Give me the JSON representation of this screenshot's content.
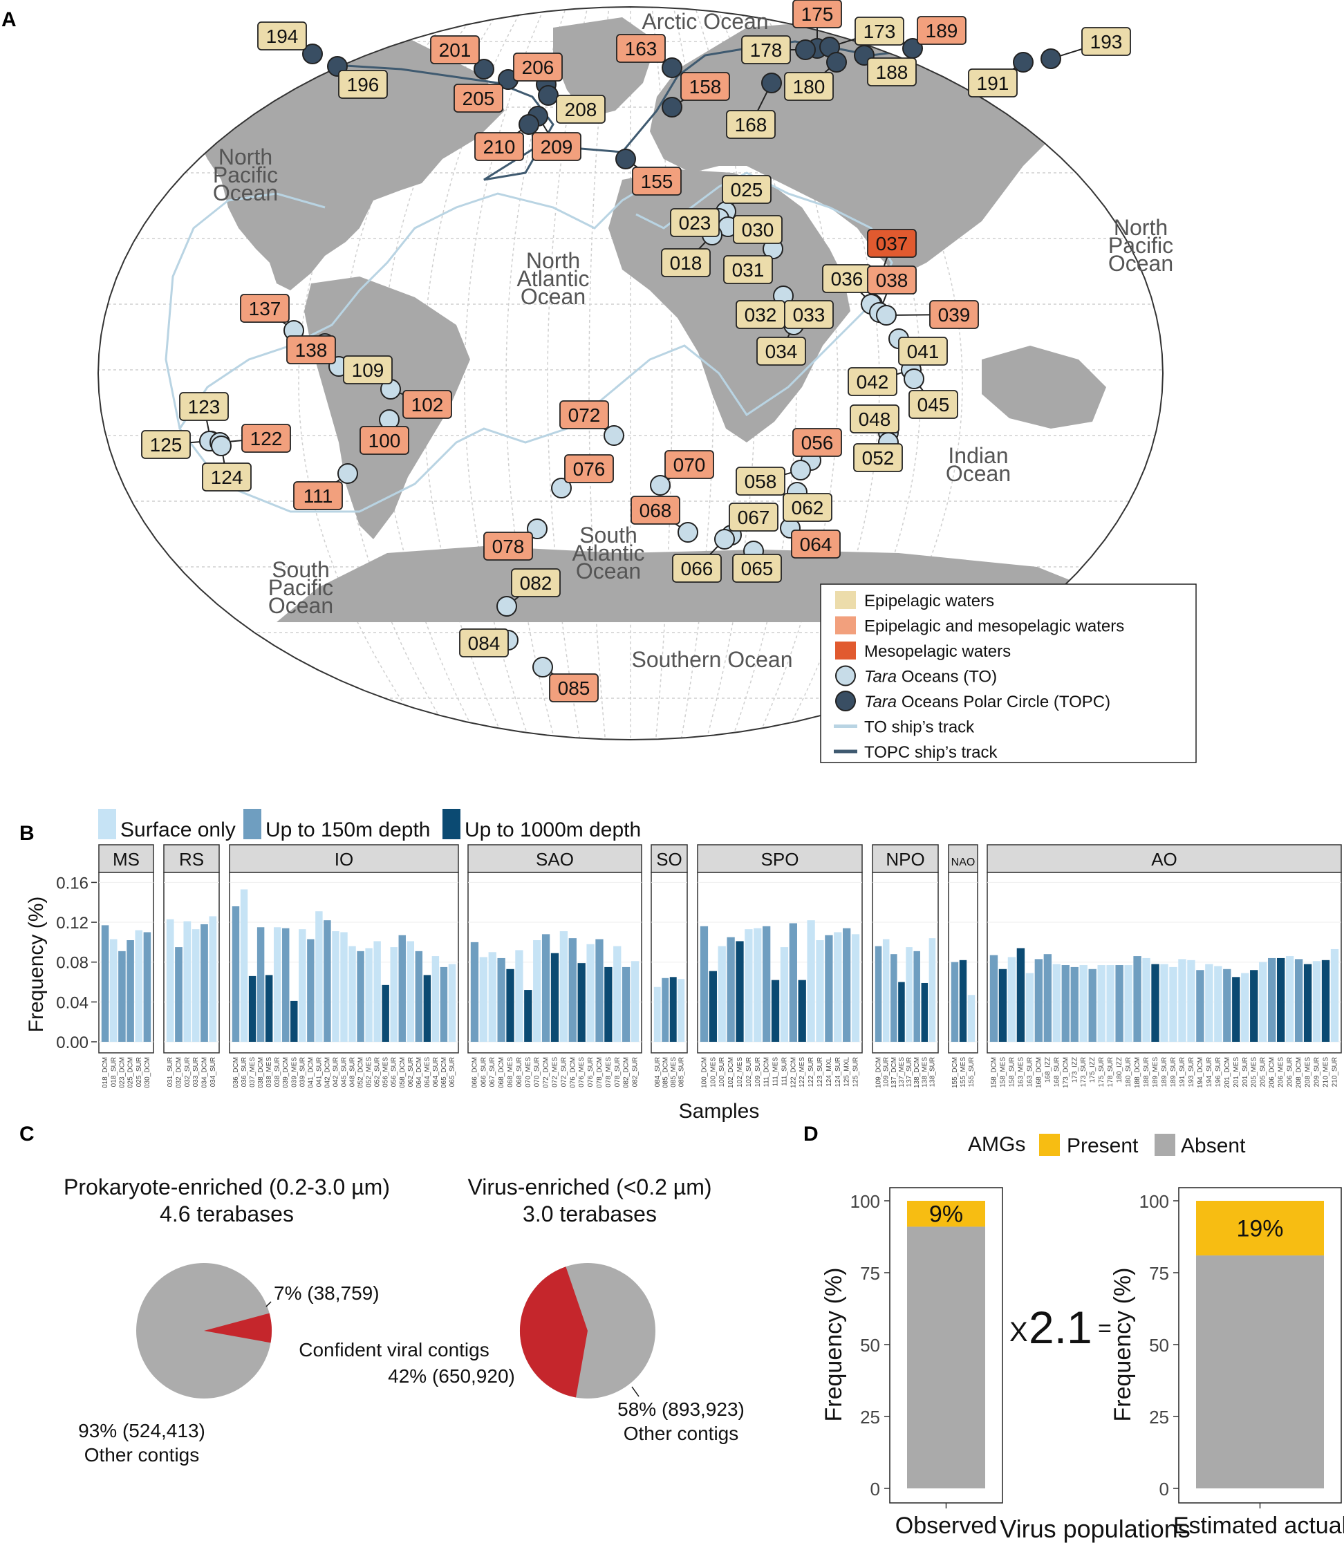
{
  "colors": {
    "land": "#a8a8a8",
    "ocean": "#ffffff",
    "graticule": "#cfcfcf",
    "to_track": "#b9d4e3",
    "topc_track": "#3f5a70",
    "to_station": "#c7dce8",
    "topc_station": "#394e63",
    "epi": "#ecdcab",
    "epimeso": "#f2a07d",
    "meso": "#e15a2f",
    "surface": "#c6e3f5",
    "upto150": "#6f9ec0",
    "upto1000": "#0b4a72",
    "strip": "#d9d9d9",
    "pie_grey": "#acacac",
    "pie_red": "#c5262c",
    "amg_present": "#f7bd12",
    "amg_absent": "#aaaaaa"
  },
  "panel_labels": {
    "a": "A",
    "b": "B",
    "c": "C",
    "d": "D"
  },
  "map": {
    "ocean_labels": [
      {
        "id": "arctic",
        "lines": [
          "Arctic Ocean"
        ]
      },
      {
        "id": "npo_w",
        "lines": [
          "North",
          "Pacific",
          "Ocean"
        ]
      },
      {
        "id": "nao",
        "lines": [
          "North",
          "Atlantic",
          "Ocean"
        ]
      },
      {
        "id": "npo_e",
        "lines": [
          "North",
          "Pacific",
          "Ocean"
        ]
      },
      {
        "id": "spo",
        "lines": [
          "South",
          "Pacific",
          "Ocean"
        ]
      },
      {
        "id": "sao",
        "lines": [
          "South",
          "Atlantic",
          "Ocean"
        ]
      },
      {
        "id": "io",
        "lines": [
          "Indian",
          "Ocean"
        ]
      },
      {
        "id": "so",
        "lines": [
          "Southern Ocean"
        ]
      }
    ],
    "stations": [
      {
        "id": "194",
        "cat": "epi",
        "type": "topc"
      },
      {
        "id": "196",
        "cat": "epi",
        "type": "topc"
      },
      {
        "id": "201",
        "cat": "epimeso",
        "type": "topc"
      },
      {
        "id": "205",
        "cat": "epimeso",
        "type": "topc"
      },
      {
        "id": "206",
        "cat": "epimeso",
        "type": "topc"
      },
      {
        "id": "208",
        "cat": "epi",
        "type": "topc"
      },
      {
        "id": "209",
        "cat": "epimeso",
        "type": "topc"
      },
      {
        "id": "210",
        "cat": "epimeso",
        "type": "topc"
      },
      {
        "id": "163",
        "cat": "epimeso",
        "type": "topc"
      },
      {
        "id": "158",
        "cat": "epimeso",
        "type": "topc"
      },
      {
        "id": "155",
        "cat": "epimeso",
        "type": "topc"
      },
      {
        "id": "175",
        "cat": "epimeso",
        "type": "topc"
      },
      {
        "id": "178",
        "cat": "epi",
        "type": "topc"
      },
      {
        "id": "173",
        "cat": "epi",
        "type": "topc"
      },
      {
        "id": "189",
        "cat": "epimeso",
        "type": "topc"
      },
      {
        "id": "180",
        "cat": "epi",
        "type": "topc"
      },
      {
        "id": "188",
        "cat": "epi",
        "type": "topc"
      },
      {
        "id": "168",
        "cat": "epi",
        "type": "topc"
      },
      {
        "id": "191",
        "cat": "epi",
        "type": "topc"
      },
      {
        "id": "193",
        "cat": "epi",
        "type": "topc"
      },
      {
        "id": "025",
        "cat": "epi",
        "type": "to"
      },
      {
        "id": "023",
        "cat": "epi",
        "type": "to"
      },
      {
        "id": "030",
        "cat": "epi",
        "type": "to"
      },
      {
        "id": "018",
        "cat": "epi",
        "type": "to"
      },
      {
        "id": "031",
        "cat": "epi",
        "type": "to"
      },
      {
        "id": "032",
        "cat": "epi",
        "type": "to"
      },
      {
        "id": "033",
        "cat": "epi",
        "type": "to"
      },
      {
        "id": "034",
        "cat": "epi",
        "type": "to"
      },
      {
        "id": "036",
        "cat": "epi",
        "type": "to"
      },
      {
        "id": "037",
        "cat": "meso",
        "type": "to"
      },
      {
        "id": "038",
        "cat": "epimeso",
        "type": "to"
      },
      {
        "id": "039",
        "cat": "epimeso",
        "type": "to"
      },
      {
        "id": "041",
        "cat": "epi",
        "type": "to"
      },
      {
        "id": "042",
        "cat": "epi",
        "type": "to"
      },
      {
        "id": "045",
        "cat": "epi",
        "type": "to"
      },
      {
        "id": "048",
        "cat": "epi",
        "type": "to"
      },
      {
        "id": "052",
        "cat": "epi",
        "type": "to"
      },
      {
        "id": "056",
        "cat": "epimeso",
        "type": "to"
      },
      {
        "id": "058",
        "cat": "epi",
        "type": "to"
      },
      {
        "id": "062",
        "cat": "epi",
        "type": "to"
      },
      {
        "id": "067",
        "cat": "epi",
        "type": "to"
      },
      {
        "id": "064",
        "cat": "epimeso",
        "type": "to"
      },
      {
        "id": "066",
        "cat": "epi",
        "type": "to"
      },
      {
        "id": "065",
        "cat": "epi",
        "type": "to"
      },
      {
        "id": "068",
        "cat": "epimeso",
        "type": "to"
      },
      {
        "id": "070",
        "cat": "epimeso",
        "type": "to"
      },
      {
        "id": "072",
        "cat": "epimeso",
        "type": "to"
      },
      {
        "id": "076",
        "cat": "epimeso",
        "type": "to"
      },
      {
        "id": "078",
        "cat": "epimeso",
        "type": "to"
      },
      {
        "id": "082",
        "cat": "epi",
        "type": "to"
      },
      {
        "id": "084",
        "cat": "epi",
        "type": "to"
      },
      {
        "id": "085",
        "cat": "epimeso",
        "type": "to"
      },
      {
        "id": "137",
        "cat": "epimeso",
        "type": "to"
      },
      {
        "id": "138",
        "cat": "epimeso",
        "type": "to"
      },
      {
        "id": "109",
        "cat": "epi",
        "type": "to"
      },
      {
        "id": "102",
        "cat": "epimeso",
        "type": "to"
      },
      {
        "id": "100",
        "cat": "epimeso",
        "type": "to"
      },
      {
        "id": "111",
        "cat": "epimeso",
        "type": "to"
      },
      {
        "id": "123",
        "cat": "epi",
        "type": "to"
      },
      {
        "id": "125",
        "cat": "epi",
        "type": "to"
      },
      {
        "id": "122",
        "cat": "epimeso",
        "type": "to"
      },
      {
        "id": "124",
        "cat": "epi",
        "type": "to"
      }
    ],
    "legend": [
      {
        "key": "epi",
        "kind": "swatch",
        "text": "Epipelagic waters"
      },
      {
        "key": "epimeso",
        "kind": "swatch",
        "text": "Epipelagic and mesopelagic waters"
      },
      {
        "key": "meso",
        "kind": "swatch",
        "text": "Mesopelagic waters"
      },
      {
        "key": "to_station",
        "kind": "circle",
        "italic": "Tara",
        "text": " Oceans (TO)"
      },
      {
        "key": "topc_station",
        "kind": "circle",
        "italic": "Tara",
        "text": " Oceans Polar Circle (TOPC)"
      },
      {
        "key": "to_track",
        "kind": "line",
        "text": "TO ship’s track"
      },
      {
        "key": "topc_track",
        "kind": "line",
        "text": "TOPC ship’s track"
      }
    ]
  },
  "chart_data": [
    {
      "type": "bar",
      "panel": "B",
      "xlabel": "Samples",
      "ylabel": "Frequency (%)",
      "ylim": [
        0,
        0.17
      ],
      "yticks": [
        "0.00",
        "0.04",
        "0.08",
        "0.12",
        "0.16"
      ],
      "legend": [
        {
          "key": "s",
          "label": "Surface only"
        },
        {
          "key": "d",
          "label": "Up to 150m depth"
        },
        {
          "key": "m",
          "label": "Up to 1000m depth"
        }
      ],
      "facets": [
        {
          "name": "MS",
          "samples": [
            "018_DCM",
            "018_SUR",
            "023_DCM",
            "025_DCM",
            "025_SUR",
            "030_DCM"
          ],
          "values": [
            0.117,
            0.103,
            0.091,
            0.102,
            0.112,
            0.11
          ],
          "cat": [
            "d",
            "s",
            "d",
            "d",
            "s",
            "d"
          ]
        },
        {
          "name": "RS",
          "samples": [
            "031_SUR",
            "032_DCM",
            "032_SUR",
            "033_SUR",
            "034_DCM",
            "034_SUR"
          ],
          "values": [
            0.123,
            0.095,
            0.121,
            0.113,
            0.118,
            0.126
          ],
          "cat": [
            "s",
            "d",
            "s",
            "s",
            "d",
            "s"
          ]
        },
        {
          "name": "IO",
          "samples": [
            "036_DCM",
            "036_SUR",
            "037_MES",
            "038_DCM",
            "038_MES",
            "038_SUR",
            "039_DCM",
            "039_MES",
            "039_SUR",
            "041_DCM",
            "041_SUR",
            "042_DCM",
            "042_SUR",
            "045_SUR",
            "048_SUR",
            "052_DCM",
            "052_MES",
            "052_SUR",
            "056_MES",
            "056_SUR",
            "058_DCM",
            "062_SUR",
            "064_DCM",
            "064_MES",
            "064_SUR",
            "065_DCM",
            "065_SUR"
          ],
          "values": [
            0.136,
            0.153,
            0.066,
            0.115,
            0.067,
            0.115,
            0.114,
            0.041,
            0.113,
            0.103,
            0.131,
            0.122,
            0.111,
            0.11,
            0.096,
            0.091,
            0.094,
            0.101,
            0.057,
            0.095,
            0.107,
            0.101,
            0.091,
            0.067,
            0.086,
            0.075,
            0.078
          ],
          "cat": [
            "d",
            "s",
            "m",
            "d",
            "m",
            "s",
            "d",
            "m",
            "s",
            "d",
            "s",
            "d",
            "s",
            "s",
            "s",
            "d",
            "s",
            "s",
            "m",
            "s",
            "d",
            "s",
            "d",
            "m",
            "s",
            "d",
            "s"
          ]
        },
        {
          "name": "SAO",
          "samples": [
            "066_DCM",
            "066_SUR",
            "067_SUR",
            "068_DCM",
            "068_MES",
            "068_SUR",
            "070_MES",
            "070_SUR",
            "072_DCM",
            "072_MES",
            "072_SUR",
            "076_DCM",
            "076_MES",
            "076_SUR",
            "078_DCM",
            "078_MES",
            "078_SUR",
            "082_DCM",
            "082_SUR"
          ],
          "values": [
            0.1,
            0.085,
            0.09,
            0.084,
            0.073,
            0.092,
            0.052,
            0.102,
            0.108,
            0.089,
            0.111,
            0.104,
            0.079,
            0.098,
            0.103,
            0.075,
            0.096,
            0.075,
            0.081
          ],
          "cat": [
            "d",
            "s",
            "s",
            "d",
            "m",
            "s",
            "m",
            "s",
            "d",
            "m",
            "s",
            "d",
            "m",
            "s",
            "d",
            "m",
            "s",
            "d",
            "s"
          ]
        },
        {
          "name": "SO",
          "samples": [
            "084_SUR",
            "085_DCM",
            "085_MES",
            "085_SUR"
          ],
          "values": [
            0.055,
            0.064,
            0.065,
            0.063
          ],
          "cat": [
            "s",
            "d",
            "m",
            "s"
          ]
        },
        {
          "name": "SPO",
          "samples": [
            "100_DCM",
            "100_MES",
            "100_SUR",
            "102_DCM",
            "102_MES",
            "102_SUR",
            "109_SUR",
            "111_DCM",
            "111_MES",
            "111_SUR",
            "122_DCM",
            "122_MES",
            "122_SUR",
            "123_SUR",
            "124_MXL",
            "124_SUR",
            "125_MXL",
            "125_SUR"
          ],
          "values": [
            0.116,
            0.071,
            0.096,
            0.105,
            0.101,
            0.113,
            0.114,
            0.116,
            0.062,
            0.095,
            0.119,
            0.062,
            0.122,
            0.102,
            0.107,
            0.11,
            0.114,
            0.108
          ],
          "cat": [
            "d",
            "m",
            "s",
            "d",
            "m",
            "s",
            "s",
            "d",
            "m",
            "s",
            "d",
            "m",
            "s",
            "s",
            "d",
            "s",
            "d",
            "s"
          ]
        },
        {
          "name": "NPO",
          "samples": [
            "109_DCM",
            "109_SUR",
            "137_DCM",
            "137_MES",
            "137_SUR",
            "138_DCM",
            "138_MES",
            "138_SUR"
          ],
          "values": [
            0.096,
            0.103,
            0.088,
            0.06,
            0.095,
            0.091,
            0.059,
            0.104
          ],
          "cat": [
            "d",
            "s",
            "d",
            "m",
            "s",
            "d",
            "m",
            "s"
          ]
        },
        {
          "name": "NAO",
          "samples": [
            "155_DCM",
            "155_MES",
            "155_SUR"
          ],
          "values": [
            0.08,
            0.082,
            0.047
          ],
          "cat": [
            "d",
            "m",
            "s"
          ]
        },
        {
          "name": "AO",
          "samples": [
            "158_DCM",
            "158_MES",
            "158_SUR",
            "163_MES",
            "163_SUR",
            "168_DCM",
            "168_IZZ",
            "168_SUR",
            "173_DCM",
            "173_IZZ",
            "173_SUR",
            "175_IZZ",
            "175_SUR",
            "178_SUR",
            "180_IZZ",
            "180_SUR",
            "188_DCM",
            "188_SUR",
            "189_MES",
            "189_SUR",
            "189_SUR",
            "191_SUR",
            "193_SUR",
            "194_DCM",
            "194_SUR",
            "196_SUR",
            "201_DCM",
            "201_MES",
            "201_SUR",
            "205_MES",
            "205_SUR",
            "206_DCM",
            "206_MES",
            "206_SUR",
            "208_DCM",
            "208_MES",
            "209_SUR",
            "210_MES",
            "210_SUR"
          ],
          "values": [
            0.087,
            0.073,
            0.085,
            0.094,
            0.069,
            0.083,
            0.088,
            0.078,
            0.077,
            0.075,
            0.077,
            0.073,
            0.077,
            0.077,
            0.077,
            0.077,
            0.086,
            0.084,
            0.078,
            0.078,
            0.075,
            0.083,
            0.082,
            0.072,
            0.078,
            0.076,
            0.073,
            0.065,
            0.069,
            0.072,
            0.08,
            0.084,
            0.084,
            0.086,
            0.083,
            0.078,
            0.081,
            0.082,
            0.093
          ],
          "cat": [
            "d",
            "m",
            "s",
            "m",
            "s",
            "d",
            "d",
            "s",
            "d",
            "d",
            "s",
            "d",
            "s",
            "s",
            "d",
            "s",
            "d",
            "s",
            "m",
            "s",
            "s",
            "s",
            "s",
            "d",
            "s",
            "s",
            "d",
            "m",
            "s",
            "m",
            "s",
            "d",
            "m",
            "s",
            "d",
            "m",
            "s",
            "m",
            "s"
          ]
        }
      ]
    },
    {
      "type": "pie",
      "panel": "C",
      "title": "Prokaryote-enriched (0.2-3.0 µm)",
      "subtitle": "4.6 terabases",
      "slices": [
        {
          "name": "Confident viral contigs",
          "value": 38759,
          "percent": 7,
          "label": "7% (38,759)"
        },
        {
          "name": "Other contigs",
          "value": 524413,
          "percent": 93,
          "label": "93% (524,413)"
        }
      ]
    },
    {
      "type": "pie",
      "panel": "C",
      "title": "Virus-enriched (<0.2 µm)",
      "subtitle": "3.0 terabases",
      "slices": [
        {
          "name": "Confident viral contigs",
          "value": 650920,
          "percent": 42,
          "label": "42% (650,920)"
        },
        {
          "name": "Other contigs",
          "value": 893923,
          "percent": 58,
          "label": "58% (893,923)"
        }
      ]
    },
    {
      "type": "bar",
      "panel": "D",
      "stacked": true,
      "xlabel": "Virus populations",
      "ylabel": "Frequency (%)",
      "ylim": [
        0,
        100
      ],
      "yticks": [
        "0",
        "25",
        "50",
        "75",
        "100"
      ],
      "legend_title": "AMGs",
      "legend": [
        {
          "key": "present",
          "label": "Present"
        },
        {
          "key": "absent",
          "label": "Absent"
        }
      ],
      "bars": [
        {
          "category": "Observed",
          "present": 9,
          "absent": 91,
          "label": "9%"
        },
        {
          "category": "Estimated actual",
          "present": 19,
          "absent": 81,
          "label": "19%"
        }
      ]
    }
  ],
  "pie_center_label": "Confident viral contigs",
  "pie_other_label": "Other contigs",
  "multiplier": {
    "prefix": "X",
    "value": "2.1",
    "suffix": "="
  }
}
